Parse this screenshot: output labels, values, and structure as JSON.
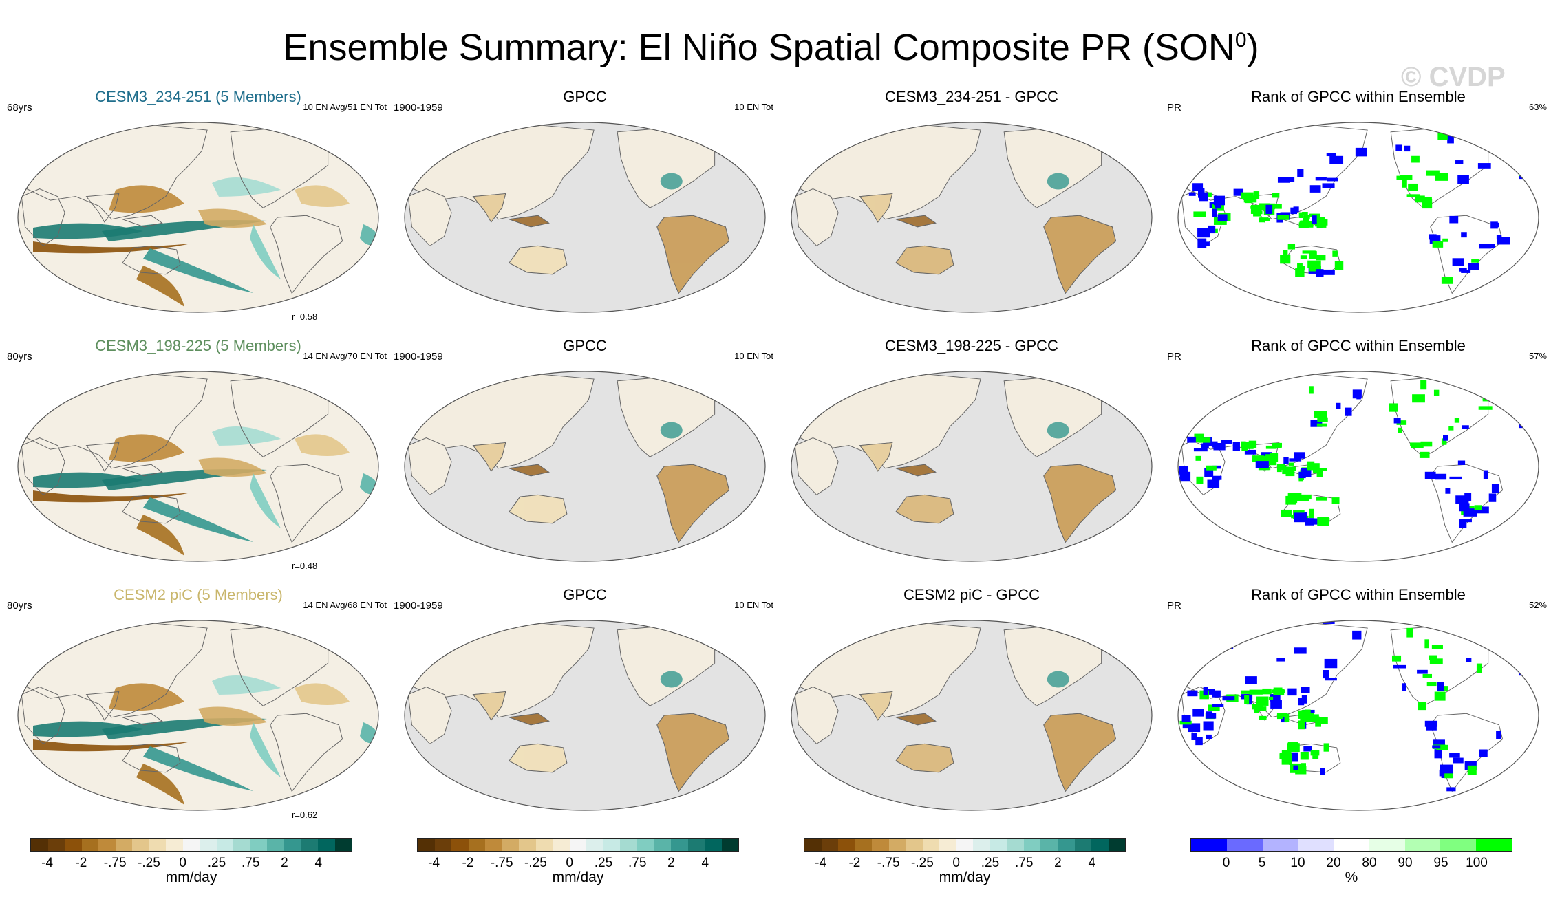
{
  "title_main": "Ensemble Summary: El Niño Spatial Composite PR (SON",
  "title_sup": "0",
  "title_end": ")",
  "watermark": "© CVDP",
  "colors": {
    "brown_to_teal": [
      "#543005",
      "#6b3e0a",
      "#8c510a",
      "#a6701f",
      "#bf8a3a",
      "#d3ab64",
      "#e3c68b",
      "#efdcb0",
      "#f6ecd4",
      "#f5f5f5",
      "#dcefec",
      "#c7eae5",
      "#a5dbd1",
      "#80cdc1",
      "#5ab4a8",
      "#35978f",
      "#1c7b72",
      "#01665e",
      "#003c30"
    ],
    "rank": [
      "#0000ff",
      "#6a6aff",
      "#b3b3ff",
      "#e0e0ff",
      "#ffffff",
      "#e6ffe6",
      "#b3ffb3",
      "#80ff80",
      "#00ff00"
    ],
    "ocean_gray": "#e3e3e3"
  },
  "rows": [
    {
      "model": {
        "title": "CESM3_234-251 (5 Members)",
        "title_color": "#1f6e8c",
        "years": "68yrs",
        "counts": "10 EN Avg/51 EN Tot",
        "corr": "r=0.58"
      },
      "obs": {
        "title": "GPCC",
        "period": "1900-1959",
        "counts": "10 EN Tot"
      },
      "diff": {
        "title": "CESM3_234-251 - GPCC"
      },
      "rank": {
        "title": "Rank of GPCC within Ensemble",
        "var": "PR",
        "pct": "63%"
      }
    },
    {
      "model": {
        "title": "CESM3_198-225 (5 Members)",
        "title_color": "#5e8f5e",
        "years": "80yrs",
        "counts": "14 EN Avg/70 EN Tot",
        "corr": "r=0.48"
      },
      "obs": {
        "title": "GPCC",
        "period": "1900-1959",
        "counts": "10 EN Tot"
      },
      "diff": {
        "title": "CESM3_198-225 - GPCC"
      },
      "rank": {
        "title": "Rank of GPCC within Ensemble",
        "var": "PR",
        "pct": "57%"
      }
    },
    {
      "model": {
        "title": "CESM2 piC (5 Members)",
        "title_color": "#c9b66b",
        "years": "80yrs",
        "counts": "14 EN Avg/68 EN Tot",
        "corr": "r=0.62"
      },
      "obs": {
        "title": "GPCC",
        "period": "1900-1959",
        "counts": "10 EN Tot"
      },
      "diff": {
        "title": "CESM2 piC - GPCC"
      },
      "rank": {
        "title": "Rank of GPCC within Ensemble",
        "var": "PR",
        "pct": "52%"
      }
    }
  ],
  "colorbars": [
    {
      "ticks": [
        "-4",
        "-2",
        "-.75",
        "-.25",
        "0",
        ".25",
        ".75",
        "2",
        "4"
      ],
      "unit": "mm/day"
    },
    {
      "ticks": [
        "-4",
        "-2",
        "-.75",
        "-.25",
        "0",
        ".25",
        ".75",
        "2",
        "4"
      ],
      "unit": "mm/day"
    },
    {
      "ticks": [
        "-4",
        "-2",
        "-.75",
        "-.25",
        "0",
        ".25",
        ".75",
        "2",
        "4"
      ],
      "unit": "mm/day"
    },
    {
      "ticks": [
        "0",
        "5",
        "10",
        "20",
        "80",
        "90",
        "95",
        "100"
      ],
      "unit": "%"
    }
  ]
}
